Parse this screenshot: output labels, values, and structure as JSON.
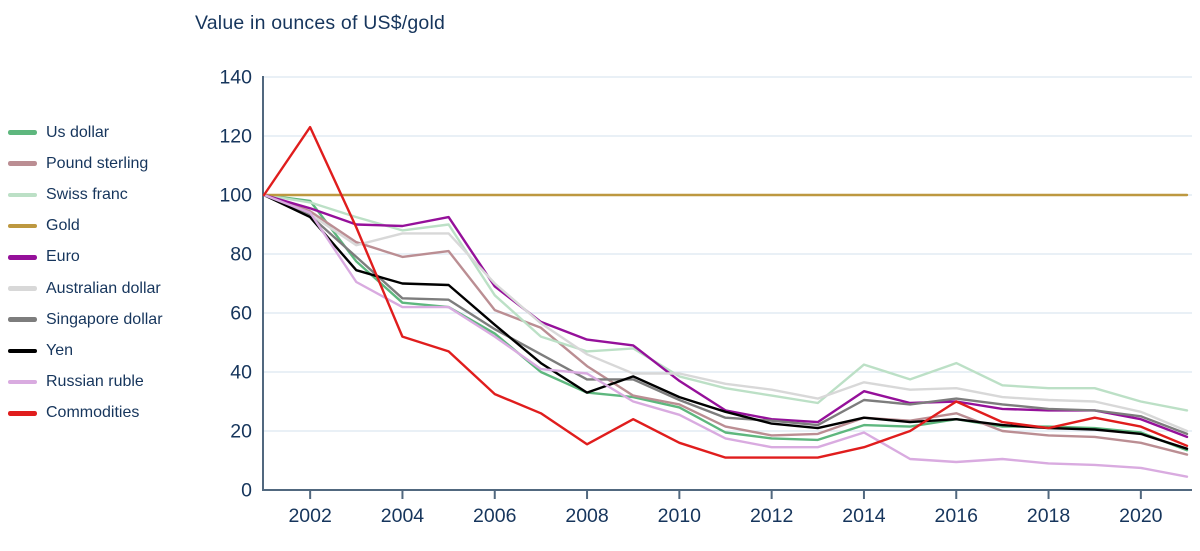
{
  "title": "Value in ounces of US$/gold",
  "style": {
    "background": "#ffffff",
    "text_color": "#16355c",
    "axis_color": "#51687f",
    "grid_color": "#dce7f1"
  },
  "chart_data": {
    "type": "line",
    "title": "Value in ounces of US$/gold",
    "x": [
      2001,
      2002,
      2003,
      2004,
      2005,
      2006,
      2007,
      2008,
      2009,
      2010,
      2011,
      2012,
      2013,
      2014,
      2015,
      2016,
      2017,
      2018,
      2019,
      2020,
      2021
    ],
    "x_tick_labels": [
      "2002",
      "2004",
      "2006",
      "2008",
      "2010",
      "2012",
      "2014",
      "2016",
      "2018",
      "2020"
    ],
    "x_ticks": [
      2002,
      2004,
      2006,
      2008,
      2010,
      2012,
      2014,
      2016,
      2018,
      2020
    ],
    "y_ticks": [
      0,
      20,
      40,
      60,
      80,
      100,
      120,
      140
    ],
    "ylim": [
      0,
      140
    ],
    "grid": "horizontal",
    "legend_position": "left",
    "series": [
      {
        "name": "Us dollar",
        "color": "#5eb77e",
        "values": [
          100,
          98,
          77.5,
          63.5,
          62,
          53,
          40,
          33,
          31.5,
          28,
          19.5,
          17.5,
          17,
          22,
          21.5,
          24,
          21.5,
          21.5,
          21,
          19.5,
          13.5
        ]
      },
      {
        "name": "Pound sterling",
        "color": "#bb8e93",
        "values": [
          100,
          94.5,
          84,
          79,
          81,
          61,
          55,
          42,
          32,
          29,
          21.5,
          18.5,
          19,
          24.5,
          23.5,
          26,
          20,
          18.5,
          18,
          16,
          12
        ]
      },
      {
        "name": "Swiss franc",
        "color": "#bce0c6",
        "values": [
          100,
          97.5,
          92.5,
          88,
          90,
          66,
          52,
          47,
          48,
          38.5,
          34.5,
          32,
          29.5,
          42.5,
          37.5,
          43,
          35.5,
          34.5,
          34.5,
          30,
          27
        ]
      },
      {
        "name": "Gold",
        "color": "#bd9840",
        "values": [
          100,
          100,
          100,
          100,
          100,
          100,
          100,
          100,
          100,
          100,
          100,
          100,
          100,
          100,
          100,
          100,
          100,
          100,
          100,
          100,
          100
        ]
      },
      {
        "name": "Euro",
        "color": "#95109a",
        "values": [
          100,
          95.5,
          90,
          89.5,
          92.5,
          69,
          57,
          51,
          49,
          37,
          27,
          24,
          23,
          33.5,
          29.5,
          30,
          27.5,
          27,
          27,
          24,
          18
        ]
      },
      {
        "name": "Australian dollar",
        "color": "#d8d8d8",
        "values": [
          100,
          93.5,
          83,
          87,
          87,
          70,
          56.5,
          46,
          39.5,
          39.5,
          36,
          34,
          31,
          36.5,
          34,
          34.5,
          31.5,
          30.5,
          30,
          26.5,
          20
        ]
      },
      {
        "name": "Singapore dollar",
        "color": "#7d7d7d",
        "values": [
          100,
          93,
          79,
          65,
          64.5,
          54.5,
          46,
          37.5,
          37.5,
          30.5,
          24.5,
          23.5,
          22,
          30.5,
          29,
          31,
          29,
          27.5,
          27,
          25,
          19
        ]
      },
      {
        "name": "Yen",
        "color": "#000000",
        "values": [
          100,
          92.5,
          74.5,
          70,
          69.5,
          56,
          43,
          33,
          38.5,
          31.5,
          26.5,
          22.5,
          21,
          24.5,
          23,
          24,
          22,
          21,
          20.5,
          19,
          14
        ]
      },
      {
        "name": "Russian ruble",
        "color": "#d9abe0",
        "values": [
          100,
          94,
          70.5,
          62,
          62,
          52,
          41,
          39.5,
          30,
          25.5,
          17.5,
          14.5,
          14.5,
          19.5,
          10.5,
          9.5,
          10.5,
          9,
          8.5,
          7.5,
          4.5
        ]
      },
      {
        "name": "Commodities",
        "color": "#e01d1d",
        "values": [
          100,
          123,
          89,
          52,
          47,
          32.5,
          26,
          15.5,
          24,
          16,
          11,
          11,
          11,
          14.5,
          20,
          30,
          23,
          21,
          24.5,
          21.5,
          15
        ]
      }
    ]
  }
}
